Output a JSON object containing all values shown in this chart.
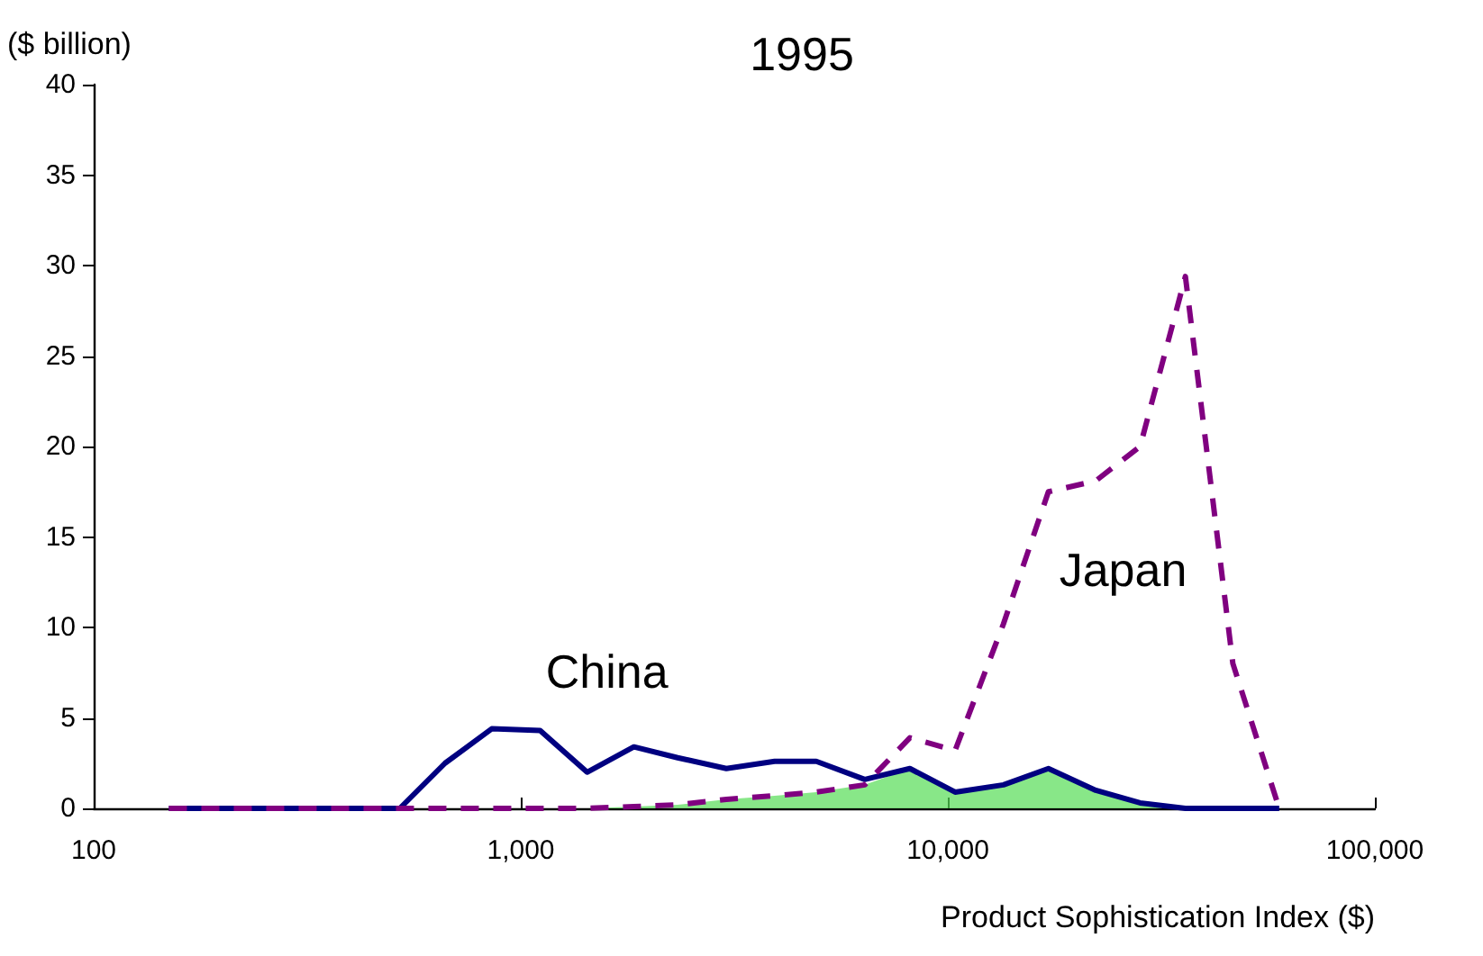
{
  "chart_data": {
    "type": "line",
    "title": "1995",
    "xlabel": "Product Sophistication Index ($)",
    "ylabel": "($ billion)",
    "log": "x",
    "x": [
      150,
      224,
      333,
      521,
      665,
      855,
      1110,
      1430,
      1840,
      2330,
      3030,
      3930,
      4920,
      6390,
      8150,
      10400,
      13500,
      17200,
      22200,
      28200,
      36000,
      46500,
      59700
    ],
    "series": [
      {
        "name": "China",
        "color": "#000080",
        "line_style": "solid",
        "values": [
          0,
          0,
          0,
          0,
          2.5,
          4.4,
          4.3,
          2.0,
          3.4,
          2.8,
          2.2,
          2.6,
          2.6,
          1.6,
          2.2,
          0.9,
          1.3,
          2.2,
          1.0,
          0.3,
          0,
          0,
          0
        ]
      },
      {
        "name": "Japan",
        "color": "#800080",
        "line_style": "dashed",
        "values": [
          0,
          0,
          0,
          0,
          0,
          0,
          0,
          0,
          0.1,
          0.2,
          0.5,
          0.7,
          0.9,
          1.3,
          3.9,
          3.2,
          10.2,
          17.5,
          18.1,
          20.0,
          29.4,
          8.0,
          0
        ]
      },
      {
        "type": "area",
        "color": "#55dd55",
        "values": [
          0,
          0,
          0,
          0,
          0,
          0,
          0,
          0,
          0.1,
          0.2,
          0.5,
          0.7,
          0.9,
          1.3,
          2.2,
          0.9,
          1.3,
          2.2,
          1.0,
          0.3,
          0,
          0,
          0
        ]
      }
    ],
    "marker": "none",
    "grid": false,
    "xlim": [
      100,
      100000
    ],
    "xticks": [
      {
        "value": 100,
        "label": "100"
      },
      {
        "value": 1000,
        "label": "1,000"
      },
      {
        "value": 10000,
        "label": "10,000"
      },
      {
        "value": 100000,
        "label": "100,000"
      }
    ],
    "ylim": [
      0,
      40
    ],
    "yticks": [
      0,
      5,
      10,
      15,
      20,
      25,
      30,
      35,
      40
    ]
  }
}
